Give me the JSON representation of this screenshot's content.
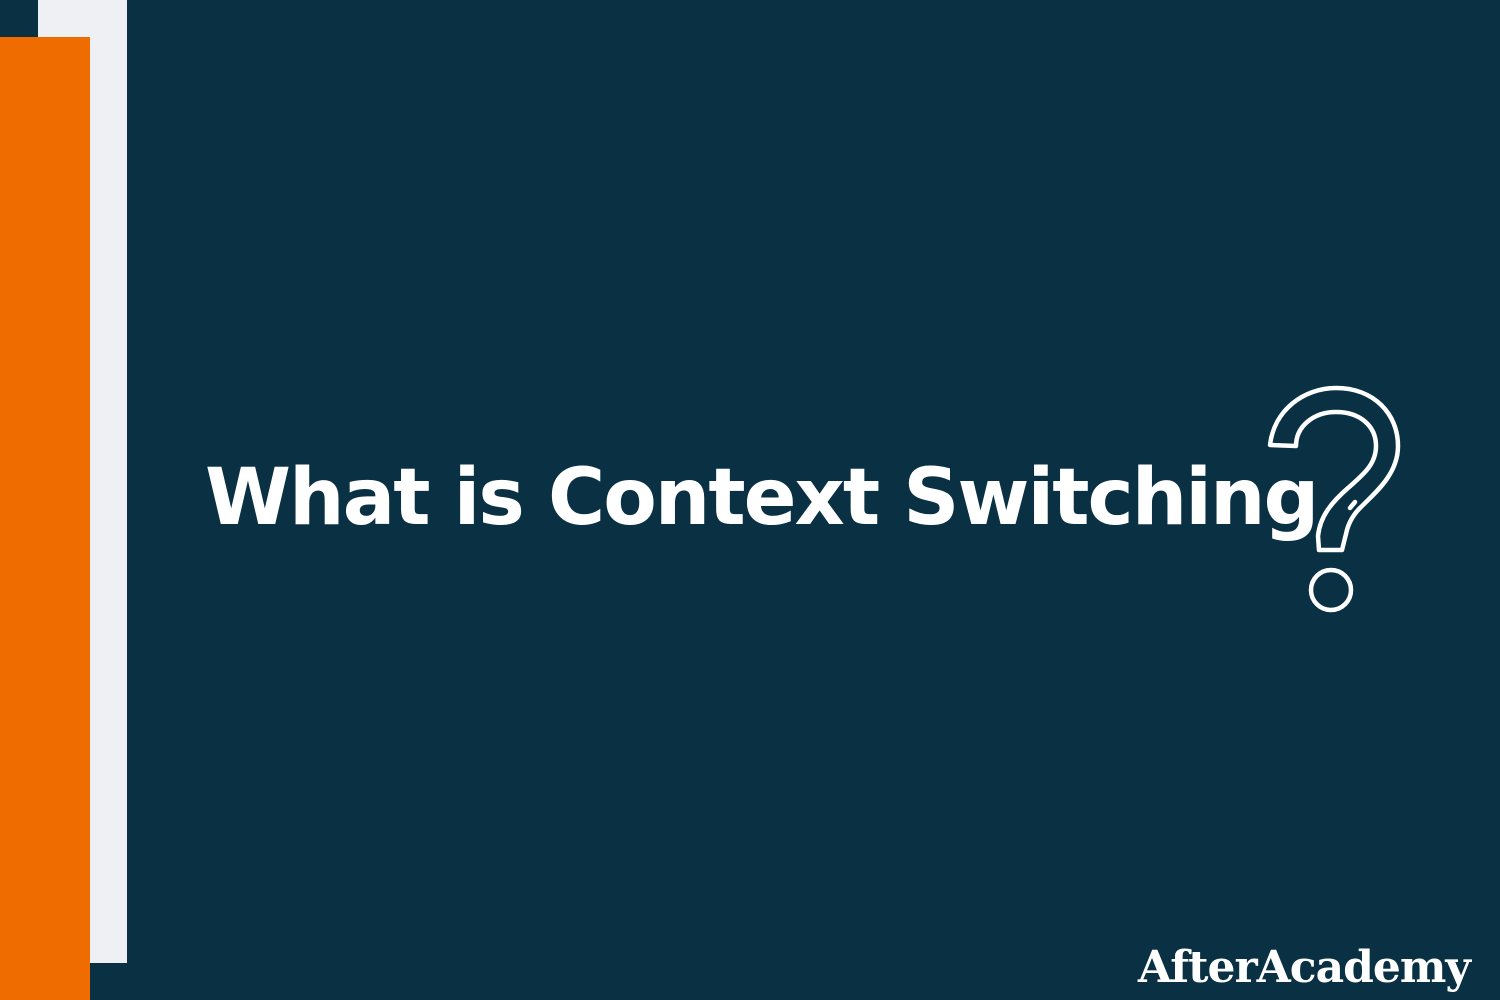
{
  "heading": {
    "title": "What is Context Switching"
  },
  "icons": {
    "question": "question-mark-icon"
  },
  "branding": {
    "logo_text": "AfterAcademy"
  },
  "colors": {
    "background": "#0a3044",
    "accent_orange": "#ef6c00",
    "accent_light": "#eff0f3",
    "text": "#ffffff"
  }
}
